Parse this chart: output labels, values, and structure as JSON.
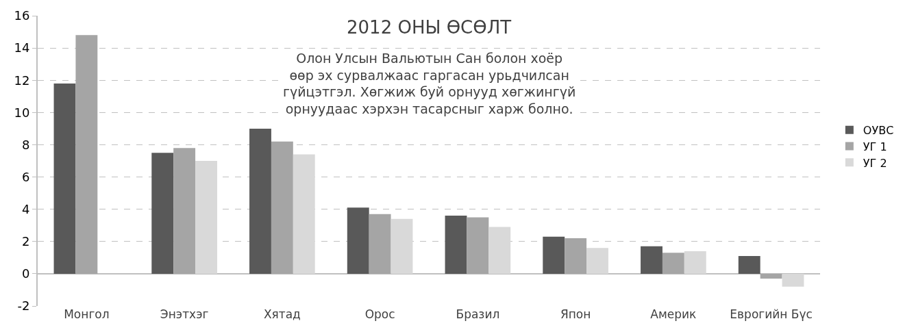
{
  "chart_data": {
    "type": "bar",
    "title": "2012 ОНЫ ӨСӨЛТ",
    "subtitle": "Олон Улсын Вальютын Сан болон хоёр\nөөр эх сурвалжаас гаргасан урьдчилсан\nгүйцэтгэл. Хөгжиж буй орнууд хөгжингүй\nорнуудаас хэрхэн тасарсныг харж болно.",
    "categories": [
      "Монгол",
      "Энэтхэг",
      "Хятад",
      "Орос",
      "Бразил",
      "Япон",
      "Америк",
      "Еврогийн Бүс"
    ],
    "series": [
      {
        "name": "ОУВС",
        "color": "#595959",
        "values": [
          11.8,
          7.5,
          9.0,
          4.1,
          3.6,
          2.3,
          1.7,
          1.1
        ]
      },
      {
        "name": "УГ 1",
        "color": "#a5a5a5",
        "values": [
          14.8,
          7.8,
          8.2,
          3.7,
          3.5,
          2.2,
          1.3,
          -0.3
        ]
      },
      {
        "name": "УГ 2",
        "color": "#d9d9d9",
        "values": [
          null,
          7.0,
          7.4,
          3.4,
          2.9,
          1.6,
          1.4,
          -0.8
        ]
      }
    ],
    "ylim": [
      -2,
      16
    ],
    "yticks": [
      -2,
      0,
      2,
      4,
      6,
      8,
      10,
      12,
      14,
      16
    ],
    "grid": "y",
    "legend": "right"
  }
}
